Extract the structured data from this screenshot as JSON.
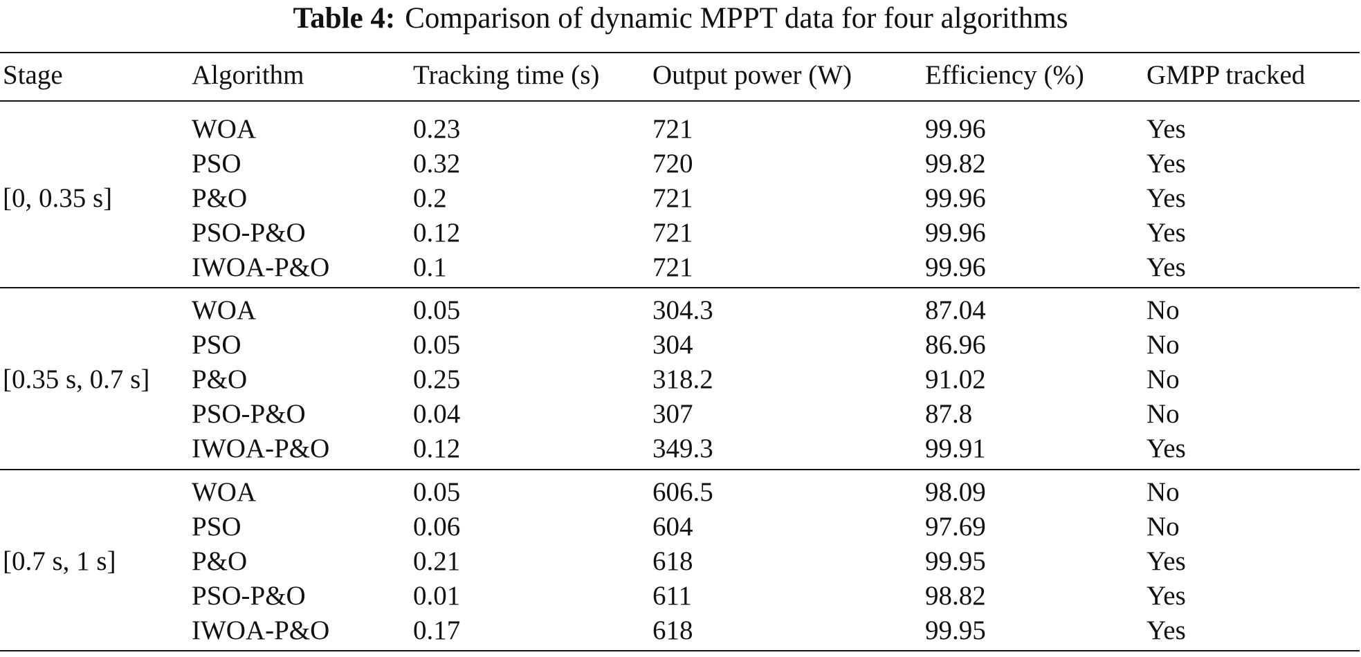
{
  "table": {
    "caption_label": "Table 4:",
    "caption_text": "Comparison of dynamic MPPT data for four algorithms",
    "columns": [
      "Stage",
      "Algorithm",
      "Tracking time (s)",
      "Output power (W)",
      "Efficiency (%)",
      "GMPP tracked"
    ],
    "groups": [
      {
        "stage": "[0, 0.35 s]",
        "rows": [
          [
            "WOA",
            "0.23",
            "721",
            "99.96",
            "Yes"
          ],
          [
            "PSO",
            "0.32",
            "720",
            "99.82",
            "Yes"
          ],
          [
            "P&O",
            "0.2",
            "721",
            "99.96",
            "Yes"
          ],
          [
            "PSO-P&O",
            "0.12",
            "721",
            "99.96",
            "Yes"
          ],
          [
            "IWOA-P&O",
            "0.1",
            "721",
            "99.96",
            "Yes"
          ]
        ]
      },
      {
        "stage": "[0.35 s, 0.7 s]",
        "rows": [
          [
            "WOA",
            "0.05",
            "304.3",
            "87.04",
            "No"
          ],
          [
            "PSO",
            "0.05",
            "304",
            "86.96",
            "No"
          ],
          [
            "P&O",
            "0.25",
            "318.2",
            "91.02",
            "No"
          ],
          [
            "PSO-P&O",
            "0.04",
            "307",
            "87.8",
            "No"
          ],
          [
            "IWOA-P&O",
            "0.12",
            "349.3",
            "99.91",
            "Yes"
          ]
        ]
      },
      {
        "stage": "[0.7 s, 1 s]",
        "rows": [
          [
            "WOA",
            "0.05",
            "606.5",
            "98.09",
            "No"
          ],
          [
            "PSO",
            "0.06",
            "604",
            "97.69",
            "No"
          ],
          [
            "P&O",
            "0.21",
            "618",
            "99.95",
            "Yes"
          ],
          [
            "PSO-P&O",
            "0.01",
            "611",
            "98.82",
            "Yes"
          ],
          [
            "IWOA-P&O",
            "0.17",
            "618",
            "99.95",
            "Yes"
          ]
        ]
      }
    ]
  }
}
